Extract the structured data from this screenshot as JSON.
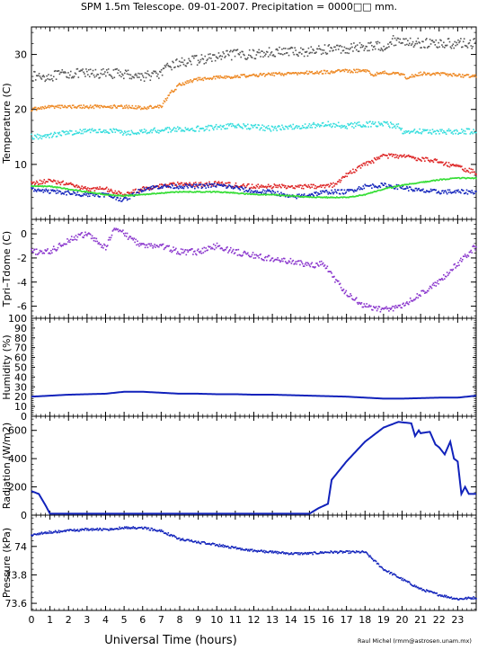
{
  "title": "SPM 1.5m Telescope.  09-01-2007.  Precipitation = 0000□□ mm.",
  "credit": "Raul Michel (rmm@astrosen.unam.mx)",
  "xlabel": "Universal Time (hours)",
  "chart_data": [
    {
      "type": "scatter",
      "ylabel": "Temperature (C)",
      "xlim": [
        0,
        24
      ],
      "ylim": [
        0,
        35
      ],
      "yticks": [
        10,
        20,
        30
      ],
      "xticks": [
        "0",
        "1",
        "2",
        "3",
        "4",
        "5",
        "6",
        "7",
        "8",
        "9",
        "10",
        "11",
        "12",
        "13",
        "14",
        "15",
        "16",
        "17",
        "18",
        "19",
        "20",
        "21",
        "22",
        "23"
      ],
      "series": [
        {
          "color": "#555555",
          "noise": 0.9,
          "x": [
            0,
            1,
            2,
            3,
            4,
            5,
            6,
            7,
            7.5,
            8,
            9,
            10,
            11,
            12,
            13,
            14,
            15,
            16,
            17,
            18,
            19,
            19.5,
            20,
            21,
            22,
            23,
            24
          ],
          "y": [
            26,
            26,
            26.5,
            26.5,
            26.5,
            26.5,
            26,
            26.5,
            28,
            28.5,
            29,
            29.5,
            30,
            30,
            30.5,
            30.5,
            30.5,
            31,
            31,
            31.5,
            31.5,
            32.5,
            32.5,
            32,
            32,
            32,
            32
          ]
        },
        {
          "color": "#ee8822",
          "noise": 0.3,
          "x": [
            0,
            1,
            2,
            3,
            4,
            5,
            6,
            7,
            7.5,
            8,
            9,
            10,
            11,
            12,
            13,
            14,
            15,
            16,
            17,
            18,
            18.5,
            19,
            19.5,
            20,
            20.2,
            21,
            22,
            23,
            24
          ],
          "y": [
            20,
            20.5,
            20.5,
            20.5,
            20.5,
            20.5,
            20.3,
            20.5,
            23,
            24.5,
            25.5,
            25.8,
            26,
            26.2,
            26.4,
            26.5,
            26.7,
            26.8,
            27,
            27,
            26.3,
            26.8,
            26.5,
            26.5,
            25.8,
            26.5,
            26.5,
            26.2,
            26
          ]
        },
        {
          "color": "#33dddd",
          "noise": 0.5,
          "x": [
            0,
            1,
            2,
            3,
            4,
            5,
            6,
            7,
            8,
            9,
            10,
            11,
            12,
            13,
            14,
            15,
            16,
            17,
            18,
            19,
            19.8,
            20,
            21,
            22,
            23,
            24
          ],
          "y": [
            15,
            15.3,
            15.8,
            16,
            16.2,
            15.8,
            16,
            16.2,
            16.5,
            16.5,
            16.8,
            17,
            16.8,
            16.5,
            16.8,
            17,
            17.3,
            17,
            17.3,
            17.3,
            17,
            16,
            16,
            16,
            16,
            16
          ]
        },
        {
          "color": "#dd2222",
          "noise": 0.4,
          "x": [
            0,
            1,
            2,
            3,
            4,
            5,
            6,
            7,
            8,
            9,
            10,
            11,
            12,
            13,
            14,
            15,
            16,
            16.5,
            17,
            18,
            19,
            20,
            21,
            22,
            23,
            24
          ],
          "y": [
            6.5,
            7,
            6.5,
            5.5,
            5.5,
            4.5,
            5.5,
            6,
            6.5,
            6.3,
            6.5,
            6.2,
            6,
            6,
            6,
            6,
            6,
            6.5,
            8,
            10,
            11.5,
            11.5,
            11,
            10.5,
            9.5,
            8.5
          ]
        },
        {
          "color": "#1122bb",
          "noise": 0.4,
          "x": [
            0,
            1,
            2,
            3,
            4,
            5,
            6,
            7,
            8,
            9,
            10,
            11,
            12,
            13,
            14,
            15,
            16,
            17,
            18,
            19,
            20,
            21,
            22,
            23,
            24
          ],
          "y": [
            5.5,
            5,
            4.8,
            4.5,
            4.5,
            3.5,
            5.5,
            6,
            6,
            6,
            6.2,
            5.8,
            5,
            5,
            4,
            4.5,
            5,
            5,
            6,
            6.2,
            5.8,
            5.2,
            5,
            5,
            5
          ]
        },
        {
          "color": "#33dd33",
          "noise": 0.1,
          "x": [
            0,
            1,
            2,
            3,
            4,
            5,
            6,
            7,
            8,
            9,
            10,
            11,
            12,
            13,
            14,
            15,
            16,
            17,
            18,
            19,
            20,
            21,
            22,
            23,
            24
          ],
          "y": [
            6,
            6,
            5.5,
            5,
            4.5,
            4.3,
            4.5,
            4.8,
            5,
            5,
            5,
            4.8,
            4.5,
            4.5,
            4.3,
            4,
            4,
            4,
            4.5,
            5.5,
            6.2,
            6.7,
            7.2,
            7.5,
            7.5
          ]
        }
      ]
    },
    {
      "type": "scatter",
      "ylabel": "Tpri–Tdome (C)",
      "xlim": [
        0,
        24
      ],
      "ylim": [
        -7,
        1.2
      ],
      "yticks": [
        0,
        -2,
        -4,
        -6
      ],
      "xticks": [
        "0",
        "1",
        "2",
        "3",
        "4",
        "5",
        "6",
        "7",
        "8",
        "9",
        "10",
        "11",
        "12",
        "13",
        "14",
        "15",
        "16",
        "17",
        "18",
        "19",
        "20",
        "21",
        "22",
        "23"
      ],
      "series": [
        {
          "color": "#8833cc",
          "noise": 0.25,
          "x": [
            0,
            1,
            2,
            3,
            4,
            4.5,
            5,
            6,
            7,
            8,
            9,
            10,
            11,
            12,
            13,
            14,
            15,
            15.8,
            16,
            17,
            18,
            19,
            20,
            21,
            22,
            23,
            24
          ],
          "y": [
            -1.5,
            -1.5,
            -0.5,
            0,
            -1.2,
            0.6,
            0,
            -1,
            -1,
            -1.5,
            -1.5,
            -1,
            -1.5,
            -1.8,
            -2.1,
            -2.3,
            -2.6,
            -2.5,
            -3,
            -5,
            -6,
            -6.3,
            -6,
            -5,
            -4,
            -2.5,
            -1
          ]
        }
      ]
    },
    {
      "type": "line",
      "ylabel": "Humidity (%)",
      "xlim": [
        0,
        24
      ],
      "ylim": [
        0,
        100
      ],
      "yticks": [
        0,
        10,
        20,
        30,
        40,
        50,
        60,
        70,
        80,
        90,
        100
      ],
      "xticks": [
        "0",
        "1",
        "2",
        "3",
        "4",
        "5",
        "6",
        "7",
        "8",
        "9",
        "10",
        "11",
        "12",
        "13",
        "14",
        "15",
        "16",
        "17",
        "18",
        "19",
        "20",
        "21",
        "22",
        "23"
      ],
      "series": [
        {
          "color": "#1122bb",
          "noise": 0.0,
          "x": [
            0,
            1,
            2,
            3,
            4,
            5,
            6,
            7,
            8,
            9,
            10,
            11,
            12,
            13,
            14,
            15,
            16,
            17,
            18,
            19,
            20,
            21,
            22,
            23,
            24
          ],
          "y": [
            20,
            21,
            22,
            22.5,
            23,
            25,
            25,
            24,
            23,
            23,
            22.5,
            22.5,
            22,
            22,
            21.5,
            21,
            20.5,
            20,
            19,
            18,
            18,
            18.5,
            19,
            19,
            21
          ]
        }
      ]
    },
    {
      "type": "line",
      "ylabel": "Radiation (W/m2)",
      "xlim": [
        0,
        24
      ],
      "ylim": [
        0,
        700
      ],
      "yticks": [
        0,
        200,
        400,
        600
      ],
      "xticks": [
        "0",
        "1",
        "2",
        "3",
        "4",
        "5",
        "6",
        "7",
        "8",
        "9",
        "10",
        "11",
        "12",
        "13",
        "14",
        "15",
        "16",
        "17",
        "18",
        "19",
        "20",
        "21",
        "22",
        "23"
      ],
      "series": [
        {
          "color": "#1122bb",
          "noise": 0.0,
          "x": [
            0,
            0.4,
            0.8,
            1,
            2,
            3,
            4,
            5,
            6,
            7,
            8,
            9,
            10,
            11,
            12,
            13,
            14,
            15,
            15.5,
            16,
            16.2,
            17,
            18,
            19,
            19.8,
            20.5,
            20.7,
            20.9,
            21,
            21.5,
            21.8,
            22,
            22.3,
            22.6,
            22.8,
            23,
            23.2,
            23.4,
            23.6,
            24
          ],
          "y": [
            170,
            150,
            60,
            10,
            10,
            10,
            10,
            10,
            10,
            10,
            10,
            10,
            10,
            10,
            10,
            10,
            10,
            10,
            50,
            80,
            250,
            380,
            520,
            620,
            660,
            650,
            560,
            600,
            580,
            590,
            500,
            480,
            430,
            520,
            400,
            380,
            150,
            200,
            150,
            150
          ]
        }
      ]
    },
    {
      "type": "scatter",
      "ylabel": "Pressure (kPa)",
      "xlim": [
        0,
        24
      ],
      "ylim": [
        73.55,
        74.22
      ],
      "yticks": [
        73.6,
        73.8,
        74
      ],
      "yticklabels": [
        "73.6",
        "73.8",
        "74"
      ],
      "xticks": [
        "0",
        "1",
        "2",
        "3",
        "4",
        "5",
        "6",
        "7",
        "8",
        "9",
        "10",
        "11",
        "12",
        "13",
        "14",
        "15",
        "16",
        "17",
        "18",
        "19",
        "20",
        "21",
        "22",
        "23"
      ],
      "series": [
        {
          "color": "#1122bb",
          "noise": 0.008,
          "x": [
            0,
            1,
            2,
            3,
            4,
            5,
            6,
            7,
            7.5,
            8,
            9,
            10,
            11,
            12,
            13,
            14,
            15,
            16,
            17,
            18,
            18.5,
            19,
            20,
            21,
            22,
            23,
            24
          ],
          "y": [
            74.08,
            74.1,
            74.11,
            74.12,
            74.12,
            74.13,
            74.13,
            74.11,
            74.08,
            74.05,
            74.03,
            74.01,
            73.99,
            73.97,
            73.96,
            73.95,
            73.95,
            73.96,
            73.96,
            73.96,
            73.9,
            73.84,
            73.77,
            73.7,
            73.66,
            73.63,
            73.64
          ]
        }
      ]
    }
  ]
}
